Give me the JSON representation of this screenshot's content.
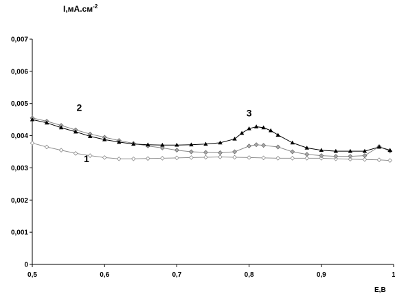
{
  "chart_data": {
    "type": "line",
    "title": "",
    "ylabel": {
      "base": "I,мА.см",
      "exponent": "-2"
    },
    "xlabel": "E,B",
    "xlim": [
      0.5,
      1.0
    ],
    "ylim": [
      0,
      0.007
    ],
    "x_ticks": [
      "0,5",
      "0,6",
      "0,7",
      "0,8",
      "0,9",
      "1"
    ],
    "y_ticks": [
      "0",
      "0,001",
      "0,002",
      "0,003",
      "0,004",
      "0,005",
      "0,006",
      "0,007"
    ],
    "grid": false,
    "legend": "none",
    "series": [
      {
        "label": "1",
        "marker": "open-diamond",
        "color": "#909090",
        "x": [
          0.5,
          0.52,
          0.54,
          0.56,
          0.58,
          0.6,
          0.62,
          0.64,
          0.66,
          0.68,
          0.7,
          0.72,
          0.74,
          0.76,
          0.78,
          0.8,
          0.82,
          0.84,
          0.86,
          0.88,
          0.9,
          0.92,
          0.94,
          0.96,
          0.98,
          0.995
        ],
        "y": [
          0.00377,
          0.00365,
          0.00355,
          0.00345,
          0.00338,
          0.00332,
          0.00328,
          0.00328,
          0.00329,
          0.0033,
          0.00331,
          0.00332,
          0.00333,
          0.00334,
          0.00333,
          0.00332,
          0.00331,
          0.0033,
          0.0033,
          0.0033,
          0.0033,
          0.00328,
          0.00327,
          0.00326,
          0.00325,
          0.00323
        ]
      },
      {
        "label": "2",
        "marker": "filled-diamond",
        "color": "#888888",
        "x": [
          0.5,
          0.52,
          0.54,
          0.56,
          0.58,
          0.6,
          0.62,
          0.64,
          0.66,
          0.68,
          0.7,
          0.72,
          0.74,
          0.76,
          0.78,
          0.8,
          0.81,
          0.82,
          0.84,
          0.86,
          0.88,
          0.9,
          0.92,
          0.94,
          0.96,
          0.98,
          0.995
        ],
        "y": [
          0.00455,
          0.00445,
          0.00432,
          0.00418,
          0.00405,
          0.00395,
          0.00385,
          0.00376,
          0.00368,
          0.00362,
          0.00355,
          0.0035,
          0.00348,
          0.00347,
          0.0035,
          0.00368,
          0.00372,
          0.0037,
          0.00365,
          0.0035,
          0.00342,
          0.00338,
          0.00336,
          0.00336,
          0.00338,
          0.00366,
          0.00352
        ]
      },
      {
        "label": "3",
        "marker": "filled-triangle",
        "color": "#000000",
        "x": [
          0.5,
          0.52,
          0.54,
          0.56,
          0.58,
          0.6,
          0.62,
          0.64,
          0.66,
          0.68,
          0.7,
          0.72,
          0.74,
          0.76,
          0.78,
          0.79,
          0.8,
          0.81,
          0.82,
          0.83,
          0.84,
          0.86,
          0.88,
          0.9,
          0.92,
          0.94,
          0.96,
          0.98,
          0.995
        ],
        "y": [
          0.0045,
          0.0044,
          0.00425,
          0.00412,
          0.00398,
          0.00388,
          0.0038,
          0.00374,
          0.00372,
          0.00371,
          0.00371,
          0.00372,
          0.00374,
          0.00378,
          0.0039,
          0.00408,
          0.00422,
          0.00428,
          0.00425,
          0.00416,
          0.00402,
          0.00378,
          0.00362,
          0.00355,
          0.00352,
          0.00352,
          0.00352,
          0.00365,
          0.00355
        ]
      }
    ],
    "curve_labels": [
      {
        "text": "2",
        "x": 0.565,
        "y": 0.00477
      },
      {
        "text": "1",
        "x": 0.575,
        "y": 0.00318
      },
      {
        "text": "3",
        "x": 0.8,
        "y": 0.0046
      }
    ]
  }
}
